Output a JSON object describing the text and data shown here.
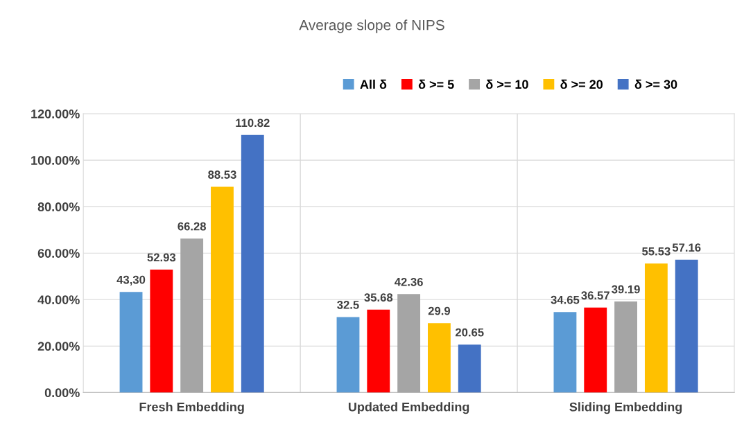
{
  "chart_data": {
    "type": "bar",
    "title": "Average slope of NIPS",
    "categories": [
      "Fresh Embedding",
      "Updated Embedding",
      "Sliding Embedding"
    ],
    "series": [
      {
        "name": "All δ",
        "color": "#5b9bd5",
        "values": [
          43.3,
          32.5,
          34.65
        ],
        "value_labels": [
          "43,30",
          "32.5",
          "34.65"
        ]
      },
      {
        "name": "δ >= 5",
        "color": "#ff0000",
        "values": [
          52.93,
          35.68,
          36.57
        ],
        "value_labels": [
          "52.93",
          "35.68",
          "36.57"
        ]
      },
      {
        "name": "δ >= 10",
        "color": "#a5a5a5",
        "values": [
          66.28,
          42.36,
          39.19
        ],
        "value_labels": [
          "66.28",
          "42.36",
          "39.19"
        ]
      },
      {
        "name": "δ >= 20",
        "color": "#ffc000",
        "values": [
          88.53,
          29.9,
          55.53
        ],
        "value_labels": [
          "88.53",
          "29.9",
          "55.53"
        ]
      },
      {
        "name": "δ >= 30",
        "color": "#4472c4",
        "values": [
          110.82,
          20.65,
          57.16
        ],
        "value_labels": [
          "110.82",
          "20.65",
          "57.16"
        ]
      }
    ],
    "ylim": [
      0,
      120
    ],
    "yticks": [
      {
        "value": 0,
        "label": "0.00%"
      },
      {
        "value": 20,
        "label": "20.00%"
      },
      {
        "value": 40,
        "label": "40.00%"
      },
      {
        "value": 60,
        "label": "60.00%"
      },
      {
        "value": 80,
        "label": "80.00%"
      },
      {
        "value": 100,
        "label": "100.00%"
      },
      {
        "value": 120,
        "label": "120.00%"
      }
    ],
    "grid": true,
    "legend": "top"
  }
}
